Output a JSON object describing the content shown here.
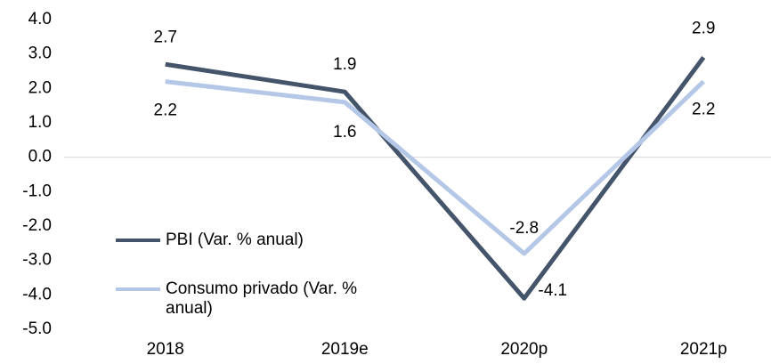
{
  "chart_data": {
    "type": "line",
    "categories": [
      "2018",
      "2019e",
      "2020p",
      "2021p"
    ],
    "series": [
      {
        "name": "PBI (Var. % anual)",
        "color": "#44546a",
        "values": [
          2.7,
          1.9,
          -4.1,
          2.9
        ]
      },
      {
        "name": "Consumo privado (Var. % anual)",
        "color": "#b4c7e7",
        "values": [
          2.2,
          1.6,
          -2.8,
          2.2
        ]
      }
    ],
    "ylim": [
      -5,
      4
    ],
    "yticks": [
      {
        "value": -5,
        "label": "-5.0"
      },
      {
        "value": -4,
        "label": "-4.0"
      },
      {
        "value": -3,
        "label": "-3.0"
      },
      {
        "value": -2,
        "label": "-2.0"
      },
      {
        "value": -1,
        "label": "-1.0"
      },
      {
        "value": 0,
        "label": "0.0"
      },
      {
        "value": 1,
        "label": "1.0"
      },
      {
        "value": 2,
        "label": "2.0"
      },
      {
        "value": 3,
        "label": "3.0"
      },
      {
        "value": 4,
        "label": "4.0"
      }
    ],
    "legend": "lower left"
  }
}
